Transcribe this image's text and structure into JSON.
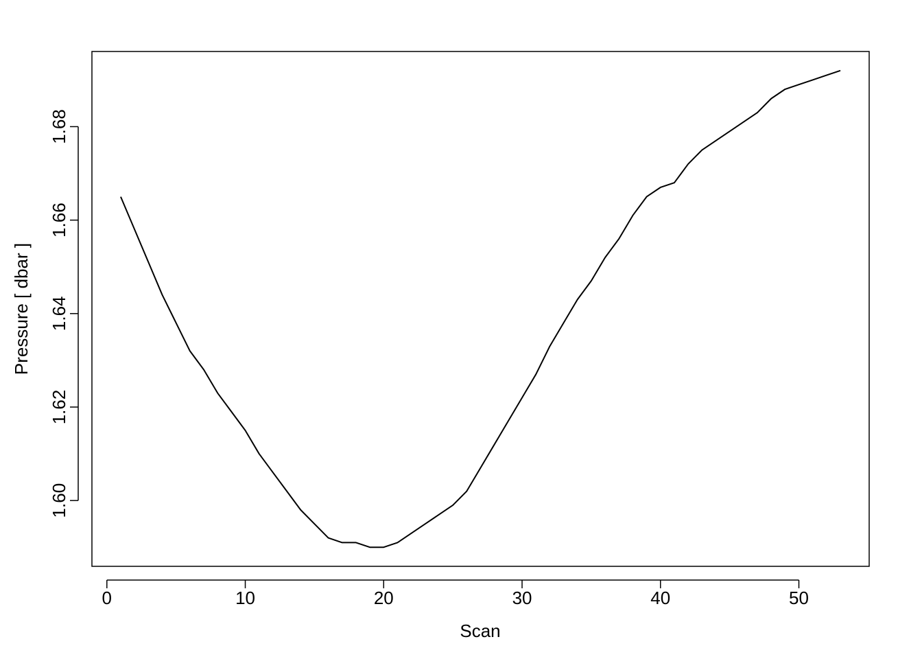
{
  "chart_data": {
    "type": "line",
    "x_label": "Scan",
    "y_label": "Pressure [ dbar ]",
    "x": [
      1,
      2,
      3,
      4,
      5,
      6,
      7,
      8,
      9,
      10,
      11,
      12,
      13,
      14,
      15,
      16,
      17,
      18,
      19,
      20,
      21,
      22,
      23,
      24,
      25,
      26,
      27,
      28,
      29,
      30,
      31,
      32,
      33,
      34,
      35,
      36,
      37,
      38,
      39,
      40,
      41,
      42,
      43,
      44,
      45,
      46,
      47,
      48,
      49,
      50,
      51,
      52,
      53
    ],
    "series": [
      {
        "color": "#000000",
        "values": [
          1.665,
          1.658,
          1.651,
          1.644,
          1.638,
          1.632,
          1.628,
          1.623,
          1.619,
          1.615,
          1.61,
          1.606,
          1.602,
          1.598,
          1.595,
          1.592,
          1.591,
          1.591,
          1.59,
          1.59,
          1.591,
          1.593,
          1.595,
          1.597,
          1.599,
          1.602,
          1.607,
          1.612,
          1.617,
          1.622,
          1.627,
          1.633,
          1.638,
          1.643,
          1.647,
          1.652,
          1.656,
          1.661,
          1.665,
          1.667,
          1.668,
          1.672,
          1.675,
          1.677,
          1.679,
          1.681,
          1.683,
          1.686,
          1.688,
          1.689,
          1.69,
          1.691,
          1.692
        ]
      }
    ],
    "xlim": [
      -1.08,
      55.08
    ],
    "ylim": [
      1.58592,
      1.69608
    ],
    "xticks": [
      0,
      10,
      20,
      30,
      40,
      50
    ],
    "yticks": [
      {
        "value": 1.6,
        "label": "1.60"
      },
      1.62,
      1.64,
      1.66,
      1.68
    ],
    "grid": false
  }
}
